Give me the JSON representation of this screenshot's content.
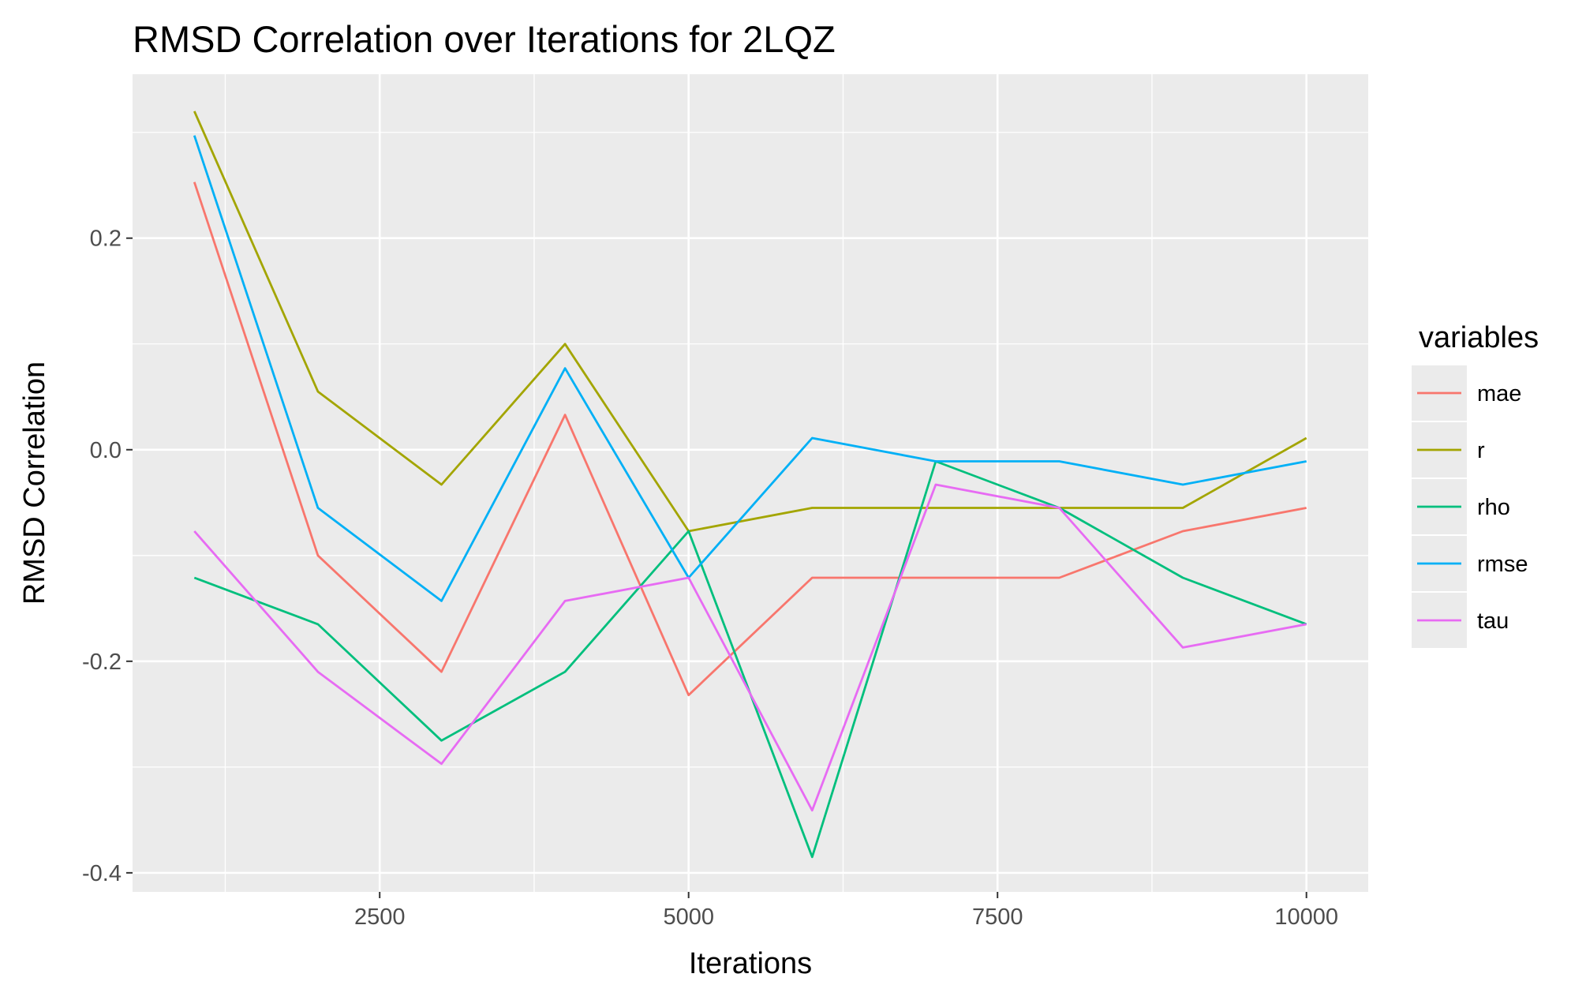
{
  "chart_data": {
    "type": "line",
    "title": "RMSD Correlation over Iterations for 2LQZ",
    "xlabel": "Iterations",
    "ylabel": "RMSD Correlation",
    "x": [
      1000,
      2000,
      3000,
      4000,
      5000,
      6000,
      7000,
      8000,
      9000,
      10000
    ],
    "xlim": [
      500,
      10500
    ],
    "ylim": [
      -0.418,
      0.355
    ],
    "xticks": [
      2500,
      5000,
      7500,
      10000
    ],
    "xtick_labels": [
      "2500",
      "5000",
      "7500",
      "10000"
    ],
    "yticks": [
      -0.4,
      -0.2,
      0.0,
      0.2
    ],
    "ytick_labels": [
      "-0.4",
      "-0.2",
      "0.0",
      "0.2"
    ],
    "grid": true,
    "legend": {
      "title": "variables",
      "position": "right"
    },
    "series": [
      {
        "name": "mae",
        "color": "#F8766D",
        "values": [
          0.253,
          -0.1,
          -0.21,
          0.033,
          -0.232,
          -0.121,
          -0.121,
          -0.121,
          -0.077,
          -0.055
        ]
      },
      {
        "name": "r",
        "color": "#A3A500",
        "values": [
          0.32,
          0.055,
          -0.033,
          0.1,
          -0.077,
          -0.055,
          -0.055,
          -0.055,
          -0.055,
          0.011
        ]
      },
      {
        "name": "rho",
        "color": "#00BF7D",
        "values": [
          -0.121,
          -0.165,
          -0.275,
          -0.21,
          -0.077,
          -0.385,
          -0.011,
          -0.055,
          -0.121,
          -0.165
        ]
      },
      {
        "name": "rmse",
        "color": "#00B0F6",
        "values": [
          0.297,
          -0.055,
          -0.143,
          0.077,
          -0.121,
          0.011,
          -0.011,
          -0.011,
          -0.033,
          -0.011
        ]
      },
      {
        "name": "tau",
        "color": "#E76BF3",
        "values": [
          -0.077,
          -0.21,
          -0.297,
          -0.143,
          -0.121,
          -0.341,
          -0.033,
          -0.055,
          -0.187,
          -0.165
        ]
      }
    ]
  }
}
